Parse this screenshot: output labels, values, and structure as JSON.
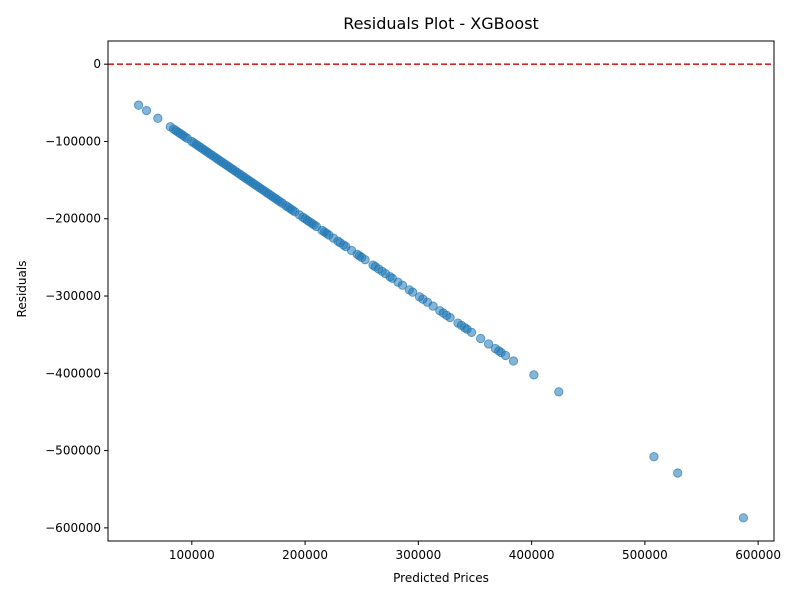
{
  "chart_data": {
    "type": "scatter",
    "title": "Residuals Plot - XGBoost",
    "xlabel": "Predicted Prices",
    "ylabel": "Residuals",
    "xlim": [
      26000,
      614000
    ],
    "ylim": [
      -617000,
      30000
    ],
    "xticks": [
      100000,
      200000,
      300000,
      400000,
      500000,
      600000
    ],
    "xtick_labels": [
      "100000",
      "200000",
      "300000",
      "400000",
      "500000",
      "600000"
    ],
    "yticks": [
      0,
      -100000,
      -200000,
      -300000,
      -400000,
      -500000,
      -600000
    ],
    "ytick_labels": [
      "0",
      "−100000",
      "−200000",
      "−300000",
      "−400000",
      "−500000",
      "−600000"
    ],
    "grid": false,
    "reference_line": {
      "y": 0,
      "color": "#d62728",
      "style": "dashed"
    },
    "point_color": "#1f77b4",
    "point_alpha": 0.55,
    "points": [
      [
        53000,
        -53000
      ],
      [
        60000,
        -60000
      ],
      [
        70000,
        -70000
      ],
      [
        81000,
        -81000
      ],
      [
        84000,
        -84000
      ],
      [
        86000,
        -86000
      ],
      [
        88000,
        -88000
      ],
      [
        90000,
        -90000
      ],
      [
        92000,
        -92000
      ],
      [
        94000,
        -94000
      ],
      [
        96000,
        -96000
      ],
      [
        100000,
        -100000
      ],
      [
        102000,
        -102000
      ],
      [
        104000,
        -104000
      ],
      [
        106000,
        -106000
      ],
      [
        108000,
        -108000
      ],
      [
        110000,
        -110000
      ],
      [
        112000,
        -112000
      ],
      [
        114000,
        -114000
      ],
      [
        116000,
        -116000
      ],
      [
        118000,
        -118000
      ],
      [
        120000,
        -120000
      ],
      [
        122000,
        -122000
      ],
      [
        124000,
        -124000
      ],
      [
        126000,
        -126000
      ],
      [
        128000,
        -128000
      ],
      [
        130000,
        -130000
      ],
      [
        132000,
        -132000
      ],
      [
        134000,
        -134000
      ],
      [
        136000,
        -136000
      ],
      [
        138000,
        -138000
      ],
      [
        140000,
        -140000
      ],
      [
        142000,
        -142000
      ],
      [
        144000,
        -144000
      ],
      [
        146000,
        -146000
      ],
      [
        148000,
        -148000
      ],
      [
        150000,
        -150000
      ],
      [
        152000,
        -152000
      ],
      [
        154000,
        -154000
      ],
      [
        156000,
        -156000
      ],
      [
        158000,
        -158000
      ],
      [
        160000,
        -160000
      ],
      [
        162000,
        -162000
      ],
      [
        164000,
        -164000
      ],
      [
        166000,
        -166000
      ],
      [
        168000,
        -168000
      ],
      [
        170000,
        -170000
      ],
      [
        172000,
        -172000
      ],
      [
        174000,
        -174000
      ],
      [
        176000,
        -176000
      ],
      [
        178000,
        -178000
      ],
      [
        180000,
        -180000
      ],
      [
        183000,
        -183000
      ],
      [
        185000,
        -185000
      ],
      [
        187000,
        -187000
      ],
      [
        189000,
        -189000
      ],
      [
        191000,
        -191000
      ],
      [
        195000,
        -195000
      ],
      [
        198000,
        -198000
      ],
      [
        200000,
        -200000
      ],
      [
        202000,
        -202000
      ],
      [
        204000,
        -204000
      ],
      [
        206000,
        -206000
      ],
      [
        208000,
        -208000
      ],
      [
        210000,
        -210000
      ],
      [
        215000,
        -215000
      ],
      [
        217000,
        -217000
      ],
      [
        219000,
        -219000
      ],
      [
        221000,
        -221000
      ],
      [
        225000,
        -225000
      ],
      [
        229000,
        -229000
      ],
      [
        231000,
        -231000
      ],
      [
        234000,
        -234000
      ],
      [
        236000,
        -236000
      ],
      [
        241000,
        -241000
      ],
      [
        246000,
        -246000
      ],
      [
        248000,
        -248000
      ],
      [
        250000,
        -250000
      ],
      [
        253000,
        -253000
      ],
      [
        260000,
        -260000
      ],
      [
        262000,
        -262000
      ],
      [
        265000,
        -265000
      ],
      [
        268000,
        -268000
      ],
      [
        271000,
        -271000
      ],
      [
        275000,
        -275000
      ],
      [
        277000,
        -277000
      ],
      [
        282000,
        -282000
      ],
      [
        286000,
        -286000
      ],
      [
        292000,
        -292000
      ],
      [
        295000,
        -295000
      ],
      [
        301000,
        -301000
      ],
      [
        304000,
        -304000
      ],
      [
        308000,
        -308000
      ],
      [
        313000,
        -313000
      ],
      [
        319000,
        -319000
      ],
      [
        322000,
        -322000
      ],
      [
        325000,
        -325000
      ],
      [
        328000,
        -328000
      ],
      [
        335000,
        -335000
      ],
      [
        338000,
        -338000
      ],
      [
        341000,
        -341000
      ],
      [
        343000,
        -343000
      ],
      [
        347000,
        -347000
      ],
      [
        355000,
        -355000
      ],
      [
        362000,
        -362000
      ],
      [
        368000,
        -368000
      ],
      [
        371000,
        -371000
      ],
      [
        373000,
        -373000
      ],
      [
        377000,
        -377000
      ],
      [
        384000,
        -384000
      ],
      [
        402000,
        -402000
      ],
      [
        424000,
        -424000
      ],
      [
        508000,
        -508000
      ],
      [
        529000,
        -529000
      ],
      [
        587000,
        -587000
      ]
    ]
  }
}
